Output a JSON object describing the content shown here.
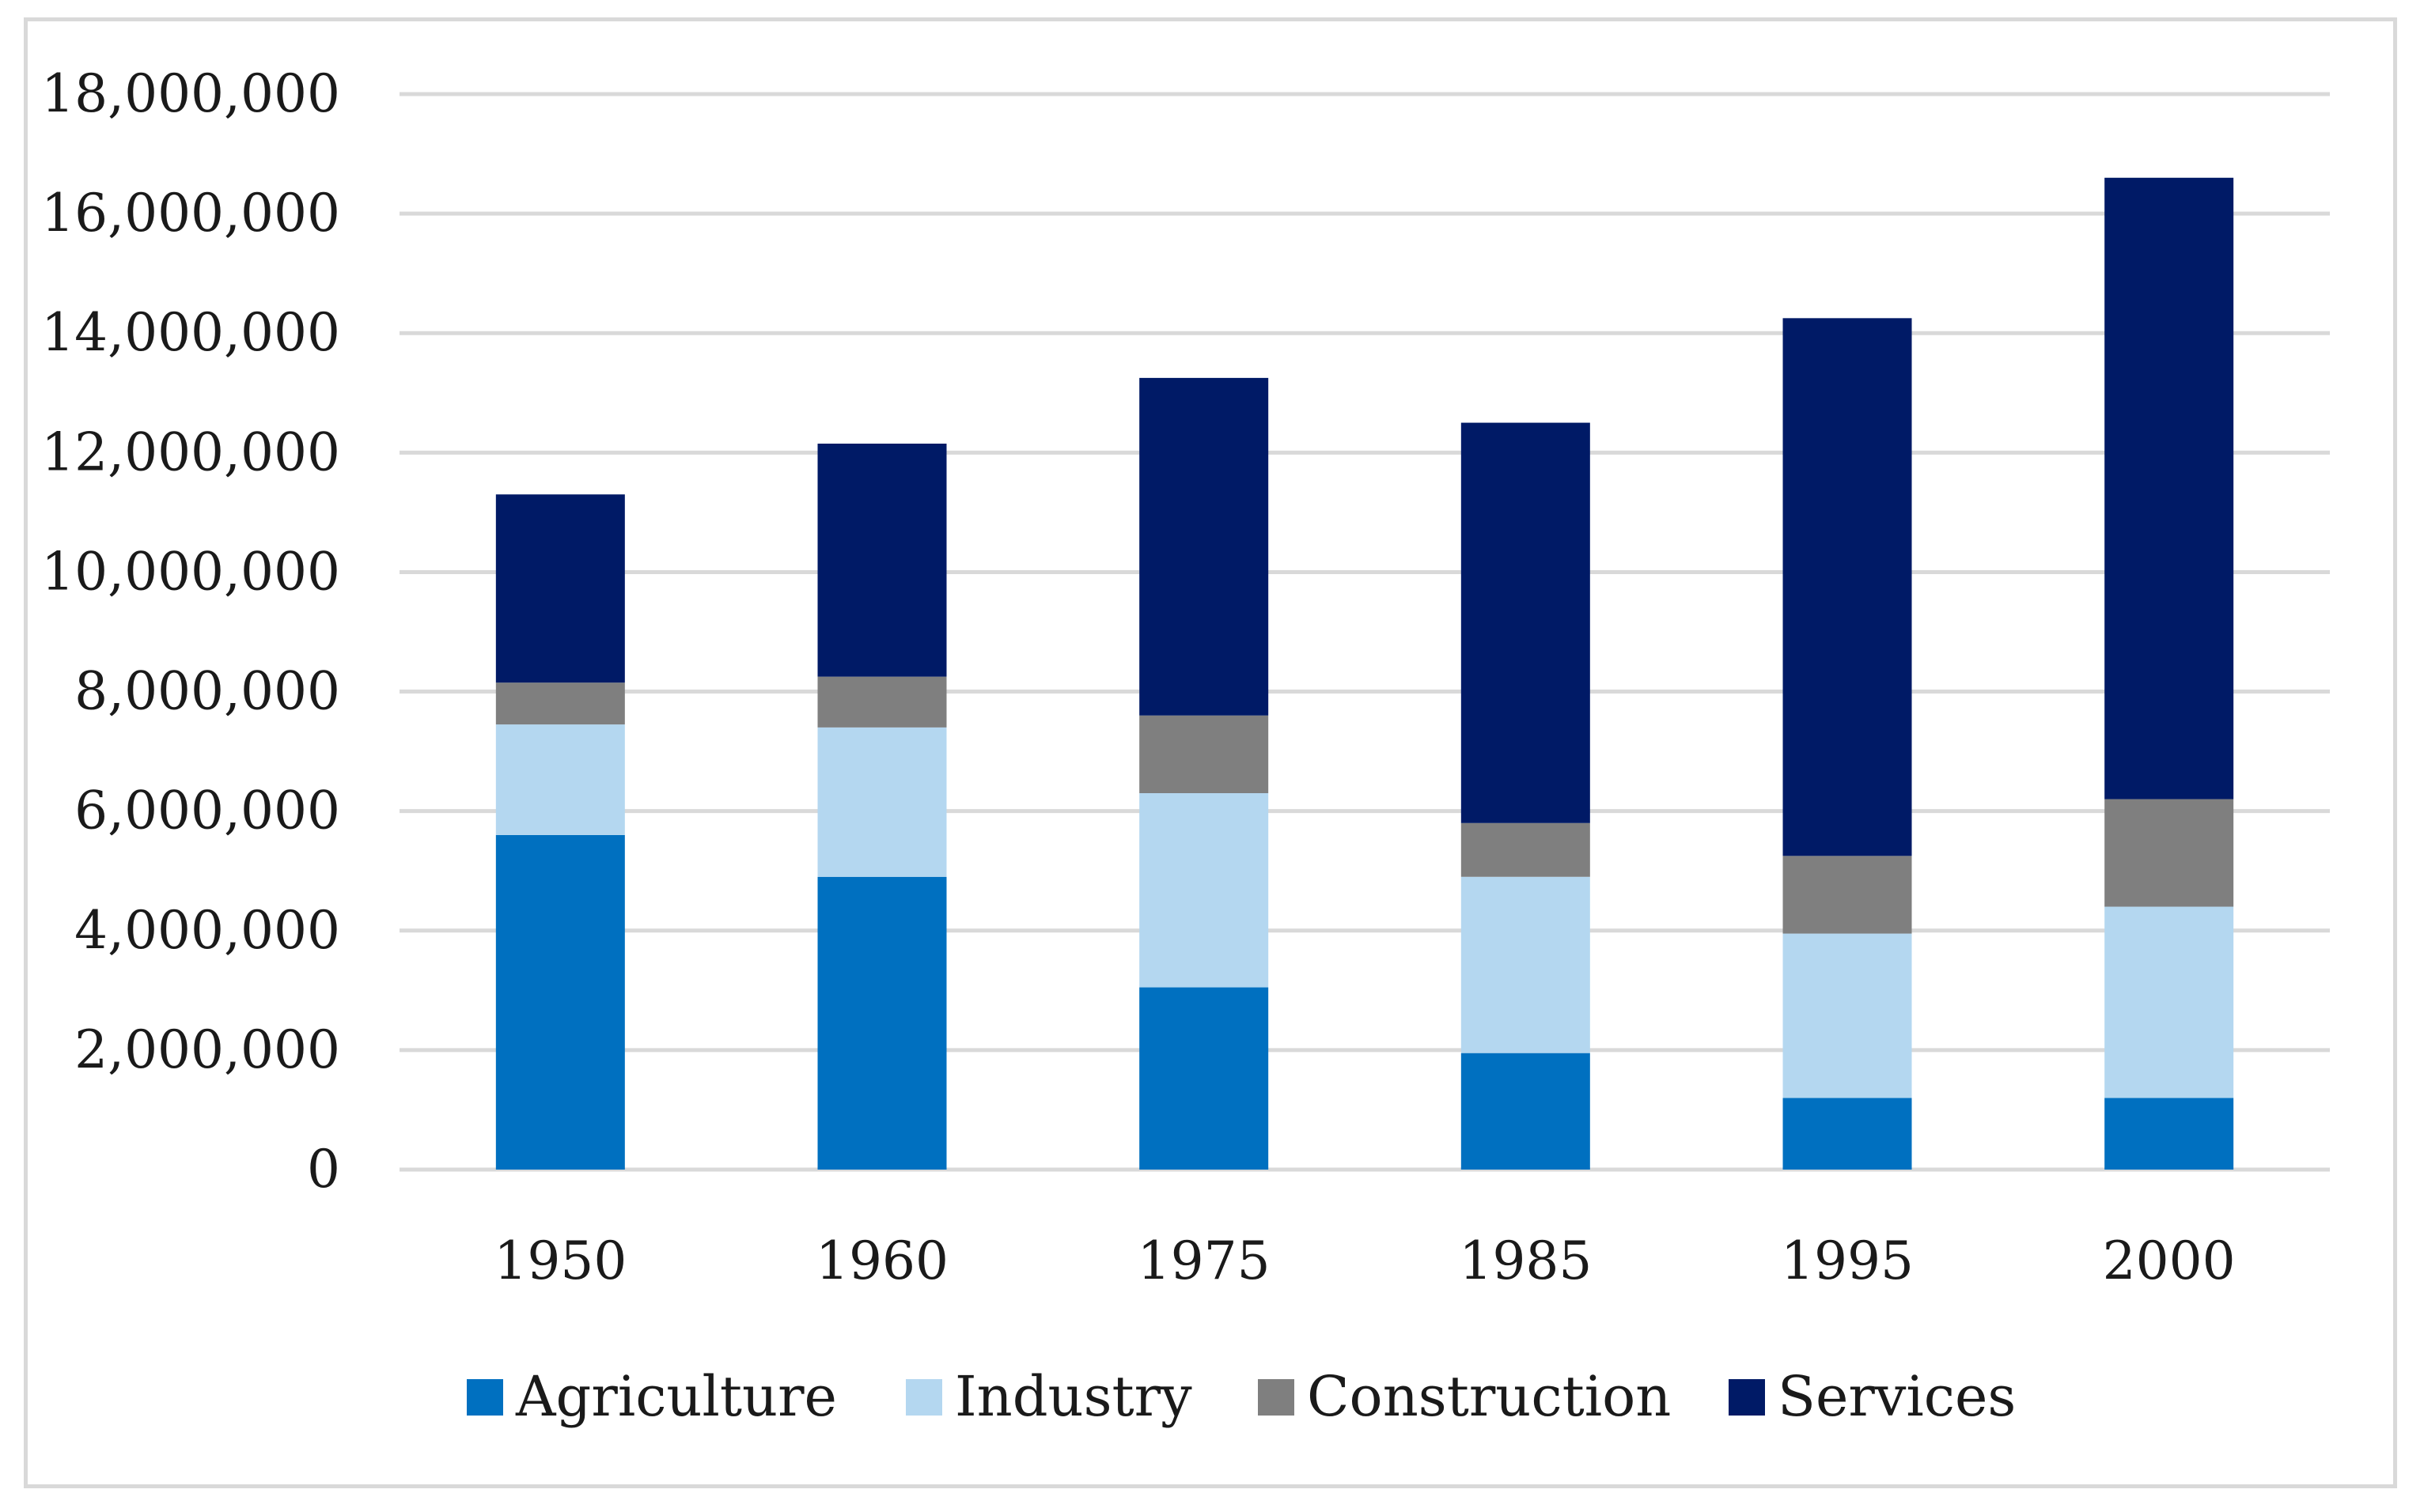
{
  "chart_data": {
    "type": "bar",
    "stacked": true,
    "title": "",
    "xlabel": "",
    "ylabel": "",
    "categories": [
      "1950",
      "1960",
      "1975",
      "1985",
      "1995",
      "2000"
    ],
    "series": [
      {
        "name": "Agriculture",
        "color": "#0070c0",
        "values": [
          5600000,
          4900000,
          3050000,
          1950000,
          1200000,
          1200000
        ]
      },
      {
        "name": "Industry",
        "color": "#b4d7f0",
        "values": [
          1850000,
          2500000,
          3250000,
          2950000,
          2750000,
          3200000
        ]
      },
      {
        "name": "Construction",
        "color": "#7f7f7f",
        "values": [
          700000,
          850000,
          1300000,
          900000,
          1300000,
          1800000
        ]
      },
      {
        "name": "Services",
        "color": "#001a66",
        "values": [
          3150000,
          3900000,
          5650000,
          6700000,
          9000000,
          10400000
        ]
      }
    ],
    "ylim": [
      0,
      18000000
    ],
    "yticks": [
      0,
      2000000,
      4000000,
      6000000,
      8000000,
      10000000,
      12000000,
      14000000,
      16000000,
      18000000
    ],
    "ytick_labels": [
      "0",
      "2,000,000",
      "4,000,000",
      "6,000,000",
      "8,000,000",
      "10,000,000",
      "12,000,000",
      "14,000,000",
      "16,000,000",
      "18,000,000"
    ],
    "grid": true,
    "legend_position": "bottom"
  }
}
